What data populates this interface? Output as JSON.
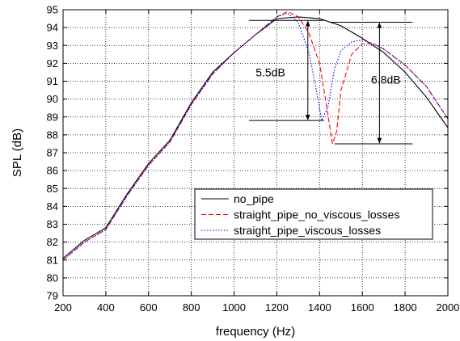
{
  "chart_data": {
    "type": "line",
    "xlabel": "frequency (Hz)",
    "ylabel": "SPL (dB)",
    "xlim": [
      200,
      2000
    ],
    "ylim": [
      79,
      95
    ],
    "xticks": [
      200,
      400,
      600,
      800,
      1000,
      1200,
      1400,
      1600,
      1800,
      2000
    ],
    "yticks": [
      79,
      80,
      81,
      82,
      83,
      84,
      85,
      86,
      87,
      88,
      89,
      90,
      91,
      92,
      93,
      94,
      95
    ],
    "grid": true,
    "legend_position": "center-right",
    "series": [
      {
        "name": "no_pipe",
        "color": "#000000",
        "style": "solid",
        "x": [
          200,
          300,
          400,
          500,
          600,
          700,
          800,
          900,
          1000,
          1100,
          1200,
          1300,
          1400,
          1500,
          1600,
          1700,
          1800,
          1900,
          2000
        ],
        "y": [
          81.1,
          82.1,
          82.8,
          84.7,
          86.4,
          87.7,
          89.8,
          91.5,
          92.6,
          93.6,
          94.5,
          94.6,
          94.5,
          94.1,
          93.4,
          92.6,
          91.5,
          90.1,
          88.4
        ]
      },
      {
        "name": "straight_pipe_no_viscous_losses",
        "color": "#ff0000",
        "style": "dashed",
        "x": [
          200,
          300,
          400,
          500,
          600,
          700,
          800,
          900,
          1000,
          1100,
          1200,
          1250,
          1300,
          1350,
          1400,
          1430,
          1460,
          1480,
          1500,
          1550,
          1600,
          1650,
          1700,
          1800,
          1900,
          2000
        ],
        "y": [
          81.0,
          82.0,
          82.7,
          84.6,
          86.3,
          87.6,
          89.7,
          91.4,
          92.6,
          93.6,
          94.6,
          94.9,
          94.6,
          93.7,
          92.0,
          89.8,
          87.5,
          88.2,
          90.5,
          92.5,
          93.1,
          93.1,
          92.8,
          91.9,
          90.7,
          88.9
        ]
      },
      {
        "name": "straight_pipe_viscous_losses",
        "color": "#0000ff",
        "style": "dotted",
        "x": [
          200,
          300,
          400,
          500,
          600,
          700,
          800,
          900,
          1000,
          1100,
          1200,
          1250,
          1300,
          1350,
          1380,
          1410,
          1440,
          1470,
          1500,
          1550,
          1600,
          1650,
          1700,
          1800,
          1900,
          2000
        ],
        "y": [
          81.0,
          82.0,
          82.7,
          84.6,
          86.3,
          87.6,
          89.7,
          91.4,
          92.6,
          93.6,
          94.6,
          94.8,
          94.3,
          92.6,
          90.8,
          88.8,
          89.6,
          91.7,
          92.7,
          93.2,
          93.3,
          93.1,
          92.8,
          91.9,
          90.7,
          88.9
        ]
      }
    ],
    "annotations": [
      {
        "text": "5.5dB",
        "arrow_x": 1345,
        "y_top": 94.4,
        "y_bottom": 88.8,
        "ref_x1": 1070,
        "ref_x2": 1420,
        "ref_top_x1": 1070,
        "ref_top_x2": 1420,
        "label_x": 1170,
        "label_y": 91.5
      },
      {
        "text": "6.8dB",
        "arrow_x": 1680,
        "y_top": 94.3,
        "y_bottom": 87.5,
        "ref_top_x1": 1450,
        "ref_top_x2": 1835,
        "ref_x1": 1470,
        "ref_x2": 1835,
        "label_x": 1710,
        "label_y": 91.1
      }
    ]
  }
}
